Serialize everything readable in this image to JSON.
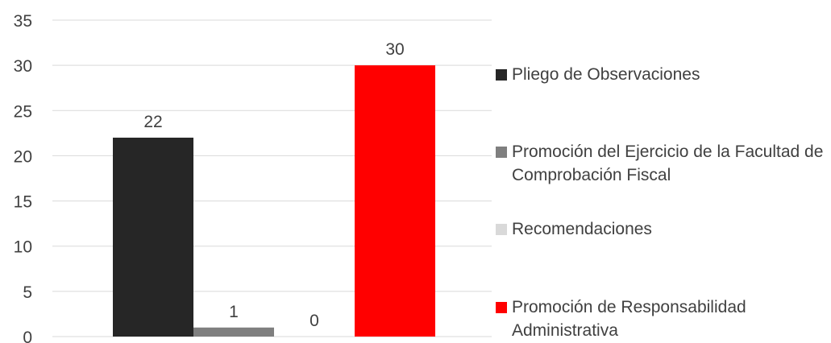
{
  "chart_data": {
    "type": "bar",
    "title": "",
    "xlabel": "",
    "ylabel": "",
    "ylim": [
      0,
      35
    ],
    "yticks": [
      0,
      5,
      10,
      15,
      20,
      25,
      30,
      35
    ],
    "grid": true,
    "legend_position": "right",
    "series": [
      {
        "name": "Pliego de Observaciones",
        "value": 22,
        "color": "#262626"
      },
      {
        "name": "Promoción del Ejercicio de la Facultad de Comprobación Fiscal",
        "value": 1,
        "color": "#7f7f7f"
      },
      {
        "name": "Recomendaciones",
        "value": 0,
        "color": "#d9d9d9"
      },
      {
        "name": "Promoción de Responsabilidad Administrativa",
        "value": 30,
        "color": "#ff0000"
      }
    ]
  }
}
